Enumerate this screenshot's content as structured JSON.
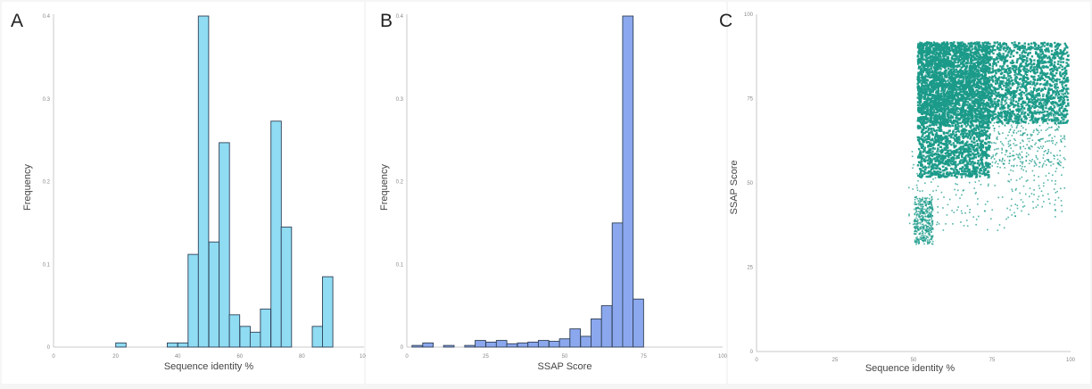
{
  "chart_data": [
    {
      "panel": "A",
      "type": "bar",
      "xlabel": "Sequence identity %",
      "ylabel": "Frequency",
      "xlim": [
        0,
        100
      ],
      "ylim": [
        0,
        0.4
      ],
      "xticks": [
        "0",
        "20",
        "40",
        "60",
        "80",
        "100"
      ],
      "yticks": [
        "0",
        "0.1",
        "0.2",
        "0.3",
        "0.4"
      ],
      "bin_width": 3.33,
      "color": "#8fdcf3",
      "x": [
        21.7,
        38.3,
        41.7,
        45,
        48.3,
        51.7,
        55,
        58.3,
        61.7,
        65,
        68.3,
        71.7,
        75,
        78.3,
        85,
        88.3,
        95
      ],
      "values": [
        0.005,
        0.005,
        0.005,
        0.112,
        0.4,
        0.127,
        0.247,
        0.039,
        0.025,
        0.018,
        0.046,
        0.273,
        0.145,
        0,
        0.025,
        0.085,
        0
      ]
    },
    {
      "panel": "B",
      "type": "bar",
      "xlabel": "SSAP Score",
      "ylabel": "Frequency",
      "xlim": [
        0,
        100
      ],
      "ylim": [
        0,
        0.4
      ],
      "xticks": [
        "0",
        "25",
        "50",
        "75",
        "100"
      ],
      "yticks": [
        "0",
        "0.1",
        "0.2",
        "0.3",
        "0.4"
      ],
      "bin_width": 3.33,
      "color": "#8ba8ee",
      "x": [
        3.3,
        6.7,
        13.3,
        20,
        23.3,
        26.7,
        30,
        33.3,
        36.7,
        40,
        43.3,
        46.7,
        50,
        53.3,
        56.7,
        60,
        63.3,
        66.7,
        70,
        73.3,
        76.7
      ],
      "values": [
        0.002,
        0.005,
        0.002,
        0.002,
        0.008,
        0.006,
        0.008,
        0.004,
        0.005,
        0.006,
        0.008,
        0.007,
        0.01,
        0.022,
        0.013,
        0.034,
        0.05,
        0.15,
        0.4,
        0.058,
        0
      ]
    },
    {
      "panel": "C",
      "type": "scatter",
      "xlabel": "Sequence identity %",
      "ylabel": "SSAP Score",
      "xlim": [
        0,
        100
      ],
      "ylim": [
        0,
        100
      ],
      "xticks": [
        "0",
        "25",
        "50",
        "75",
        "100"
      ],
      "yticks": [
        "0",
        "25",
        "50",
        "75",
        "100"
      ],
      "color": "#1a9a89",
      "regions": [
        {
          "x_range": [
            51,
            99
          ],
          "y_range": [
            68,
            92
          ],
          "density": "high"
        },
        {
          "x_range": [
            51,
            74
          ],
          "y_range": [
            52,
            92
          ],
          "density": "high"
        },
        {
          "x_range": [
            74,
            98
          ],
          "y_range": [
            55,
            80
          ],
          "density": "medium"
        },
        {
          "x_range": [
            48,
            80
          ],
          "y_range": [
            36,
            60
          ],
          "density": "low"
        },
        {
          "x_range": [
            50,
            56
          ],
          "y_range": [
            32,
            46
          ],
          "density": "medium"
        },
        {
          "x_range": [
            80,
            98
          ],
          "y_range": [
            40,
            70
          ],
          "density": "low"
        }
      ]
    }
  ]
}
